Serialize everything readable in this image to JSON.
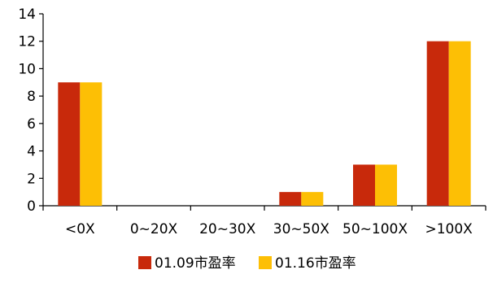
{
  "chart_data": {
    "type": "bar",
    "title": "",
    "xlabel": "",
    "ylabel": "",
    "categories": [
      "<0X",
      "0~20X",
      "20~30X",
      "30~50X",
      "50~100X",
      ">100X"
    ],
    "series": [
      {
        "name": "01.09市盈率",
        "values": [
          9,
          0,
          0,
          1,
          3,
          12
        ],
        "color": "#c8290b"
      },
      {
        "name": "01.16市盈率",
        "values": [
          9,
          0,
          0,
          1,
          3,
          12
        ],
        "color": "#fdbf05"
      }
    ],
    "ylim": [
      0,
      14
    ],
    "yticks": [
      0,
      2,
      4,
      6,
      8,
      10,
      12,
      14
    ],
    "grid": false,
    "legend_position": "bottom-center"
  }
}
